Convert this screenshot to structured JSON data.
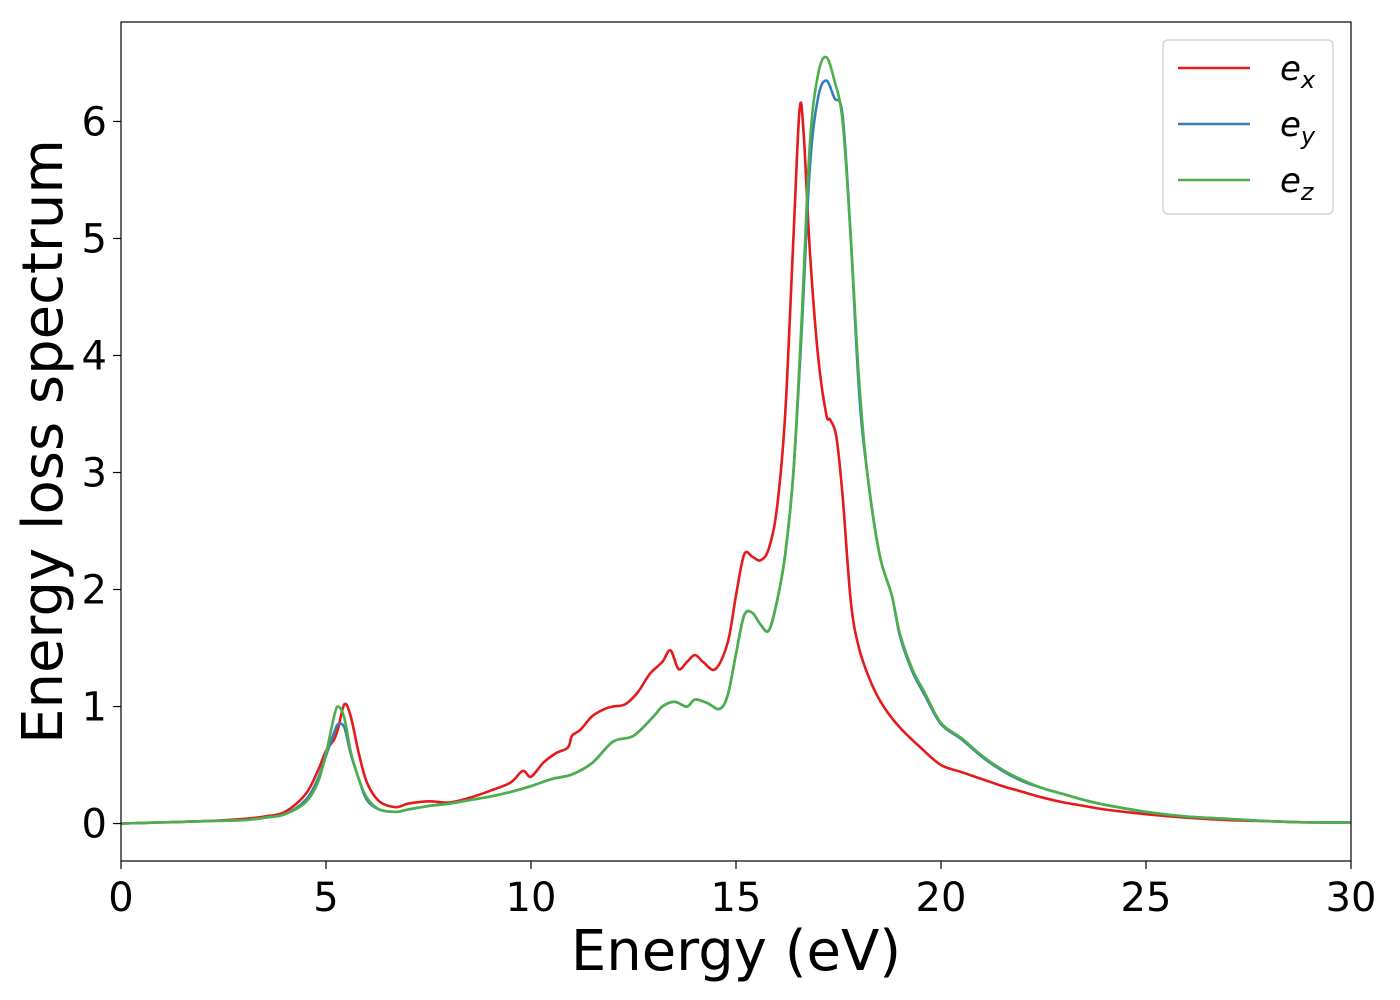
{
  "chart_data": {
    "type": "line",
    "xlabel": "Energy (eV)",
    "ylabel": "Energy loss spectrum",
    "xlim": [
      0,
      30
    ],
    "ylim": [
      -0.32,
      6.85
    ],
    "xticks": [
      0,
      5,
      10,
      15,
      20,
      25,
      30
    ],
    "xtick_labels": [
      "0",
      "5",
      "10",
      "15",
      "20",
      "25",
      "30"
    ],
    "yticks": [
      0,
      1,
      2,
      3,
      4,
      5,
      6
    ],
    "ytick_labels": [
      "0",
      "1",
      "2",
      "3",
      "4",
      "5",
      "6"
    ],
    "grid": false,
    "legend_placement": "top-right",
    "series": [
      {
        "name": "e",
        "subscript": "x",
        "color": "#e41a1c",
        "x": [
          0,
          1,
          2,
          3,
          3.5,
          4,
          4.5,
          4.8,
          5.0,
          5.2,
          5.3,
          5.45,
          5.6,
          5.8,
          6.0,
          6.3,
          6.7,
          7.0,
          7.5,
          8.0,
          8.5,
          9.0,
          9.5,
          9.8,
          10.0,
          10.3,
          10.6,
          10.9,
          11.0,
          11.2,
          11.5,
          11.8,
          12.0,
          12.3,
          12.6,
          12.9,
          13.2,
          13.4,
          13.6,
          13.8,
          14.0,
          14.2,
          14.5,
          14.8,
          15.0,
          15.2,
          15.4,
          15.6,
          15.8,
          16.0,
          16.2,
          16.4,
          16.55,
          16.65,
          16.8,
          17.0,
          17.2,
          17.3,
          17.45,
          17.6,
          17.8,
          18.0,
          18.3,
          18.6,
          19.0,
          19.5,
          20.0,
          20.5,
          21.0,
          21.5,
          22.0,
          22.5,
          23.0,
          23.5,
          24.0,
          25.0,
          26.0,
          27.0,
          28.0,
          29.0,
          30.0
        ],
        "y": [
          0,
          0.01,
          0.02,
          0.04,
          0.06,
          0.1,
          0.25,
          0.45,
          0.62,
          0.72,
          0.82,
          1.02,
          0.92,
          0.6,
          0.35,
          0.19,
          0.14,
          0.17,
          0.19,
          0.18,
          0.22,
          0.28,
          0.35,
          0.45,
          0.4,
          0.52,
          0.6,
          0.65,
          0.75,
          0.8,
          0.92,
          0.98,
          1.0,
          1.02,
          1.12,
          1.28,
          1.38,
          1.48,
          1.32,
          1.38,
          1.44,
          1.38,
          1.32,
          1.55,
          1.95,
          2.3,
          2.28,
          2.25,
          2.35,
          2.7,
          3.5,
          5.0,
          6.1,
          5.9,
          4.9,
          4.0,
          3.5,
          3.45,
          3.3,
          2.8,
          1.9,
          1.5,
          1.2,
          1.0,
          0.82,
          0.65,
          0.5,
          0.44,
          0.38,
          0.32,
          0.27,
          0.22,
          0.18,
          0.15,
          0.12,
          0.08,
          0.05,
          0.03,
          0.02,
          0.01,
          0.01
        ]
      },
      {
        "name": "e",
        "subscript": "y",
        "color": "#377eb8",
        "x": [
          0,
          1,
          2,
          3,
          3.5,
          4,
          4.5,
          4.8,
          5.0,
          5.2,
          5.3,
          5.45,
          5.6,
          5.8,
          6.0,
          6.3,
          6.7,
          7.0,
          7.5,
          8.0,
          8.5,
          9.0,
          9.5,
          10.0,
          10.5,
          11.0,
          11.5,
          12.0,
          12.5,
          13.0,
          13.2,
          13.5,
          13.8,
          14.0,
          14.3,
          14.6,
          14.8,
          15.0,
          15.2,
          15.4,
          15.6,
          15.8,
          16.0,
          16.2,
          16.4,
          16.6,
          16.8,
          17.0,
          17.2,
          17.4,
          17.6,
          17.8,
          18.0,
          18.2,
          18.5,
          18.8,
          19.0,
          19.3,
          19.6,
          20.0,
          20.5,
          21.0,
          21.5,
          22.0,
          22.5,
          23.0,
          23.5,
          24.0,
          25.0,
          26.0,
          27.0,
          28.0,
          29.0,
          30.0
        ],
        "y": [
          0,
          0.01,
          0.02,
          0.03,
          0.05,
          0.08,
          0.2,
          0.38,
          0.58,
          0.78,
          0.85,
          0.82,
          0.6,
          0.38,
          0.2,
          0.12,
          0.1,
          0.12,
          0.15,
          0.17,
          0.2,
          0.23,
          0.27,
          0.32,
          0.38,
          0.42,
          0.52,
          0.7,
          0.75,
          0.92,
          1.0,
          1.04,
          1.0,
          1.06,
          1.03,
          0.98,
          1.1,
          1.45,
          1.78,
          1.8,
          1.7,
          1.65,
          1.9,
          2.3,
          3.0,
          4.2,
          5.6,
          6.2,
          6.35,
          6.2,
          6.05,
          5.0,
          3.7,
          3.0,
          2.3,
          1.95,
          1.6,
          1.3,
          1.1,
          0.85,
          0.72,
          0.57,
          0.45,
          0.36,
          0.3,
          0.25,
          0.2,
          0.16,
          0.1,
          0.06,
          0.04,
          0.02,
          0.01,
          0.01
        ]
      },
      {
        "name": "e",
        "subscript": "z",
        "color": "#4daf4a",
        "x": [
          0,
          1,
          2,
          3,
          3.5,
          4,
          4.5,
          4.8,
          5.0,
          5.2,
          5.3,
          5.45,
          5.6,
          5.8,
          6.0,
          6.3,
          6.7,
          7.0,
          7.5,
          8.0,
          8.5,
          9.0,
          9.5,
          10.0,
          10.5,
          11.0,
          11.5,
          12.0,
          12.5,
          13.0,
          13.2,
          13.5,
          13.8,
          14.0,
          14.3,
          14.6,
          14.8,
          15.0,
          15.2,
          15.4,
          15.6,
          15.8,
          16.0,
          16.2,
          16.4,
          16.6,
          16.8,
          17.0,
          17.2,
          17.4,
          17.6,
          17.8,
          18.0,
          18.2,
          18.5,
          18.8,
          19.0,
          19.3,
          19.6,
          20.0,
          20.5,
          21.0,
          21.5,
          22.0,
          22.5,
          23.0,
          23.5,
          24.0,
          25.0,
          26.0,
          27.0,
          28.0,
          29.0,
          30.0
        ],
        "y": [
          0,
          0.01,
          0.02,
          0.03,
          0.05,
          0.08,
          0.18,
          0.35,
          0.6,
          0.92,
          1.0,
          0.9,
          0.62,
          0.38,
          0.22,
          0.12,
          0.1,
          0.12,
          0.15,
          0.17,
          0.2,
          0.23,
          0.27,
          0.32,
          0.38,
          0.42,
          0.52,
          0.7,
          0.75,
          0.92,
          1.0,
          1.04,
          1.0,
          1.06,
          1.03,
          0.98,
          1.1,
          1.45,
          1.78,
          1.8,
          1.7,
          1.65,
          1.9,
          2.3,
          3.0,
          4.3,
          5.8,
          6.4,
          6.55,
          6.35,
          6.0,
          5.0,
          3.8,
          3.0,
          2.3,
          1.95,
          1.62,
          1.32,
          1.12,
          0.86,
          0.73,
          0.58,
          0.46,
          0.37,
          0.3,
          0.25,
          0.2,
          0.16,
          0.1,
          0.06,
          0.04,
          0.02,
          0.01,
          0.01
        ]
      }
    ]
  }
}
